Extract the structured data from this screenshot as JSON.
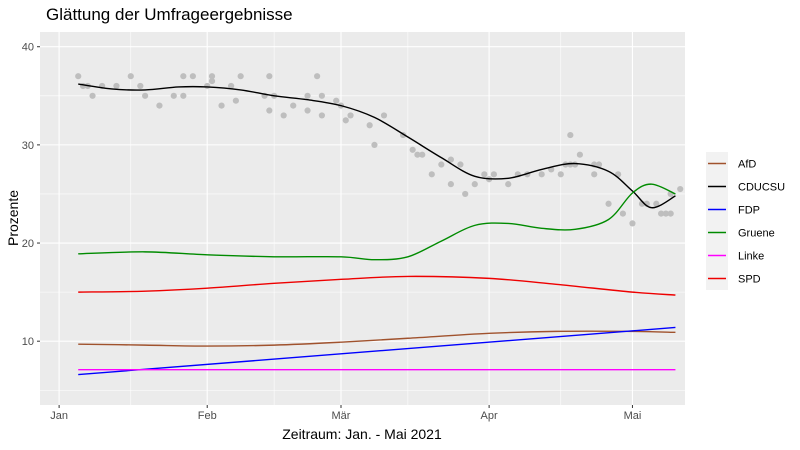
{
  "chart_data": {
    "type": "line",
    "title": "Glättung der Umfrageergebnisse",
    "xlabel": "Zeitraum: Jan. - Mai 2021",
    "ylabel": "Prozente",
    "x_axis": {
      "type": "date",
      "range": [
        "2020-12-28",
        "2021-05-12"
      ],
      "ticks": [
        {
          "date": "2021-01-01",
          "label": "Jan"
        },
        {
          "date": "2021-02-01",
          "label": "Feb"
        },
        {
          "date": "2021-03-01",
          "label": "Mär"
        },
        {
          "date": "2021-04-01",
          "label": "Apr"
        },
        {
          "date": "2021-05-01",
          "label": "Mai"
        }
      ],
      "minor_ticks": [
        "2021-01-16",
        "2021-02-15",
        "2021-03-15",
        "2021-04-16"
      ]
    },
    "y_axis": {
      "range": [
        3.5,
        41.5
      ],
      "ticks": [
        10,
        20,
        30,
        40
      ],
      "minor_ticks": [
        5,
        15,
        25,
        35
      ]
    },
    "grid": true,
    "legend_position": "right",
    "series": [
      {
        "name": "AfD",
        "color": "#a0522d",
        "points": [
          [
            "2021-01-05",
            9.7
          ],
          [
            "2021-01-19",
            9.6
          ],
          [
            "2021-02-01",
            9.5
          ],
          [
            "2021-02-15",
            9.6
          ],
          [
            "2021-03-01",
            9.9
          ],
          [
            "2021-03-15",
            10.3
          ],
          [
            "2021-04-01",
            10.8
          ],
          [
            "2021-04-15",
            11.0
          ],
          [
            "2021-05-01",
            11.0
          ],
          [
            "2021-05-10",
            10.9
          ]
        ]
      },
      {
        "name": "CDUCSU",
        "color": "#000000",
        "points": [
          [
            "2021-01-05",
            36.2
          ],
          [
            "2021-01-12",
            35.7
          ],
          [
            "2021-01-19",
            35.6
          ],
          [
            "2021-01-26",
            35.9
          ],
          [
            "2021-02-01",
            35.9
          ],
          [
            "2021-02-08",
            35.6
          ],
          [
            "2021-02-15",
            35.0
          ],
          [
            "2021-02-22",
            34.6
          ],
          [
            "2021-03-01",
            34.0
          ],
          [
            "2021-03-08",
            32.8
          ],
          [
            "2021-03-15",
            30.8
          ],
          [
            "2021-03-22",
            28.7
          ],
          [
            "2021-03-29",
            26.8
          ],
          [
            "2021-04-05",
            26.6
          ],
          [
            "2021-04-12",
            27.5
          ],
          [
            "2021-04-19",
            28.1
          ],
          [
            "2021-04-26",
            27.3
          ],
          [
            "2021-05-01",
            25.3
          ],
          [
            "2021-05-05",
            23.6
          ],
          [
            "2021-05-10",
            24.8
          ]
        ]
      },
      {
        "name": "FDP",
        "color": "#0000ff",
        "points": [
          [
            "2021-01-05",
            6.6
          ],
          [
            "2021-05-10",
            11.4
          ]
        ]
      },
      {
        "name": "Gruene",
        "color": "#008b00",
        "points": [
          [
            "2021-01-05",
            18.9
          ],
          [
            "2021-01-19",
            19.1
          ],
          [
            "2021-02-01",
            18.8
          ],
          [
            "2021-02-15",
            18.6
          ],
          [
            "2021-03-01",
            18.6
          ],
          [
            "2021-03-08",
            18.3
          ],
          [
            "2021-03-15",
            18.6
          ],
          [
            "2021-03-22",
            20.2
          ],
          [
            "2021-03-29",
            21.8
          ],
          [
            "2021-04-05",
            22.0
          ],
          [
            "2021-04-12",
            21.5
          ],
          [
            "2021-04-19",
            21.4
          ],
          [
            "2021-04-26",
            22.4
          ],
          [
            "2021-05-01",
            25.1
          ],
          [
            "2021-05-05",
            26.0
          ],
          [
            "2021-05-10",
            25.0
          ]
        ]
      },
      {
        "name": "Linke",
        "color": "#ff00ff",
        "points": [
          [
            "2021-01-05",
            7.1
          ],
          [
            "2021-05-10",
            7.1
          ]
        ]
      },
      {
        "name": "SPD",
        "color": "#ee0000",
        "points": [
          [
            "2021-01-05",
            15.0
          ],
          [
            "2021-01-19",
            15.1
          ],
          [
            "2021-02-01",
            15.4
          ],
          [
            "2021-02-15",
            15.9
          ],
          [
            "2021-03-01",
            16.3
          ],
          [
            "2021-03-15",
            16.6
          ],
          [
            "2021-04-01",
            16.4
          ],
          [
            "2021-04-15",
            15.8
          ],
          [
            "2021-05-01",
            15.0
          ],
          [
            "2021-05-10",
            14.7
          ]
        ]
      }
    ],
    "scatter": {
      "color": "#bebebe",
      "points": [
        [
          "2021-01-05",
          37
        ],
        [
          "2021-01-06",
          36
        ],
        [
          "2021-01-07",
          36
        ],
        [
          "2021-01-08",
          35
        ],
        [
          "2021-01-10",
          36
        ],
        [
          "2021-01-13",
          36
        ],
        [
          "2021-01-16",
          37
        ],
        [
          "2021-01-18",
          36
        ],
        [
          "2021-01-19",
          35
        ],
        [
          "2021-01-22",
          34
        ],
        [
          "2021-01-25",
          35
        ],
        [
          "2021-01-27",
          37
        ],
        [
          "2021-01-27",
          35
        ],
        [
          "2021-01-29",
          37
        ],
        [
          "2021-02-01",
          36
        ],
        [
          "2021-02-02",
          37
        ],
        [
          "2021-02-02",
          36.5
        ],
        [
          "2021-02-04",
          34
        ],
        [
          "2021-02-06",
          36
        ],
        [
          "2021-02-07",
          34.5
        ],
        [
          "2021-02-08",
          37
        ],
        [
          "2021-02-13",
          35
        ],
        [
          "2021-02-14",
          37
        ],
        [
          "2021-02-14",
          33.5
        ],
        [
          "2021-02-15",
          35
        ],
        [
          "2021-02-17",
          33
        ],
        [
          "2021-02-19",
          34
        ],
        [
          "2021-02-22",
          35
        ],
        [
          "2021-02-22",
          33.5
        ],
        [
          "2021-02-24",
          37
        ],
        [
          "2021-02-25",
          35
        ],
        [
          "2021-02-25",
          33
        ],
        [
          "2021-02-28",
          34.5
        ],
        [
          "2021-03-01",
          34
        ],
        [
          "2021-03-02",
          32.5
        ],
        [
          "2021-03-03",
          33
        ],
        [
          "2021-03-07",
          32
        ],
        [
          "2021-03-08",
          30
        ],
        [
          "2021-03-10",
          33
        ],
        [
          "2021-03-14",
          31
        ],
        [
          "2021-03-16",
          29.5
        ],
        [
          "2021-03-17",
          29
        ],
        [
          "2021-03-18",
          29
        ],
        [
          "2021-03-20",
          27
        ],
        [
          "2021-03-22",
          28
        ],
        [
          "2021-03-24",
          28.5
        ],
        [
          "2021-03-24",
          26
        ],
        [
          "2021-03-26",
          28
        ],
        [
          "2021-03-27",
          25
        ],
        [
          "2021-03-29",
          26
        ],
        [
          "2021-03-31",
          27
        ],
        [
          "2021-04-01",
          26.5
        ],
        [
          "2021-04-02",
          27
        ],
        [
          "2021-04-05",
          26
        ],
        [
          "2021-04-07",
          27
        ],
        [
          "2021-04-09",
          27
        ],
        [
          "2021-04-12",
          27
        ],
        [
          "2021-04-14",
          27.5
        ],
        [
          "2021-04-16",
          27
        ],
        [
          "2021-04-17",
          28
        ],
        [
          "2021-04-18",
          28
        ],
        [
          "2021-04-18",
          31
        ],
        [
          "2021-04-19",
          28
        ],
        [
          "2021-04-20",
          29
        ],
        [
          "2021-04-23",
          27
        ],
        [
          "2021-04-23",
          28
        ],
        [
          "2021-04-24",
          28
        ],
        [
          "2021-04-26",
          24
        ],
        [
          "2021-04-28",
          27
        ],
        [
          "2021-04-29",
          23
        ],
        [
          "2021-05-01",
          22
        ],
        [
          "2021-05-03",
          24
        ],
        [
          "2021-05-04",
          24
        ],
        [
          "2021-05-06",
          24
        ],
        [
          "2021-05-07",
          23
        ],
        [
          "2021-05-08",
          23
        ],
        [
          "2021-05-09",
          25
        ],
        [
          "2021-05-09",
          23
        ],
        [
          "2021-05-11",
          25.5
        ]
      ]
    }
  }
}
